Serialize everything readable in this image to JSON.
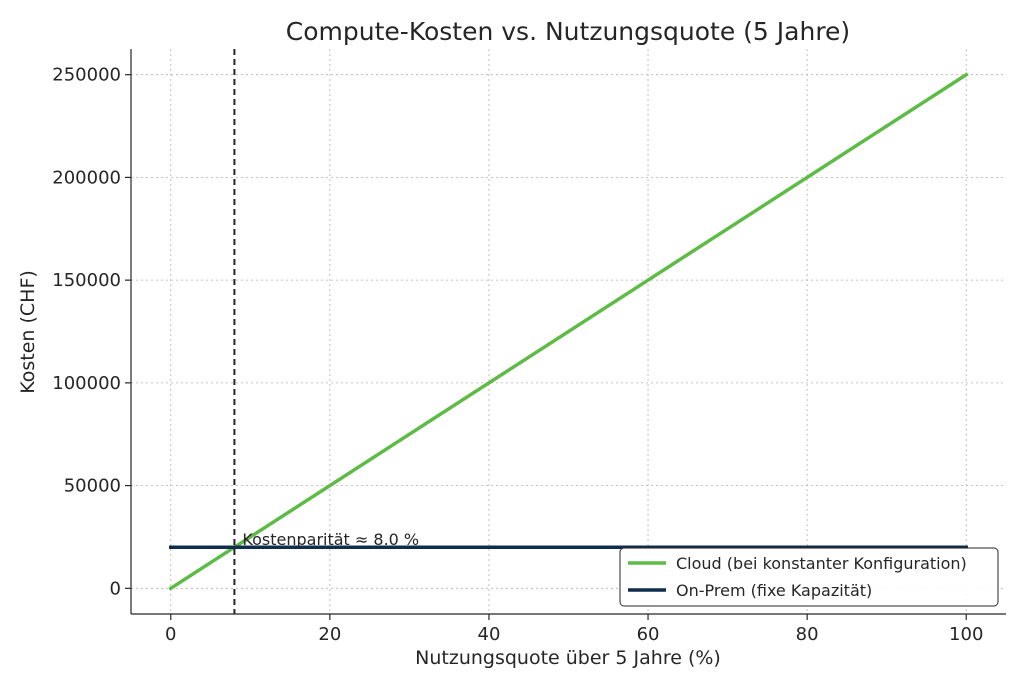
{
  "chart_data": {
    "type": "line",
    "title": "Compute-Kosten vs. Nutzungsquote (5 Jahre)",
    "xlabel": "Nutzungsquote über 5 Jahre (%)",
    "ylabel": "Kosten (CHF)",
    "xlim": [
      -5,
      105
    ],
    "ylim": [
      -12500,
      262500
    ],
    "xticks": [
      0,
      20,
      40,
      60,
      80,
      100
    ],
    "yticks": [
      0,
      50000,
      100000,
      150000,
      200000,
      250000
    ],
    "grid": true,
    "legend_position": "lower-right",
    "series": [
      {
        "name": "Cloud (bei konstanter Konfiguration)",
        "color": "#5DBB46",
        "x": [
          0,
          100
        ],
        "y": [
          0,
          250000
        ]
      },
      {
        "name": "On-Prem (fixe Kapazität)",
        "color": "#0F2E4D",
        "x": [
          0,
          100
        ],
        "y": [
          20000,
          20000
        ]
      }
    ],
    "vline": {
      "x": 8.0,
      "color": "#262626",
      "style": "dashed"
    },
    "annotation": {
      "text": "Kostenparität ≈ 8.0 %",
      "x": 8.0,
      "y": 20000
    }
  }
}
